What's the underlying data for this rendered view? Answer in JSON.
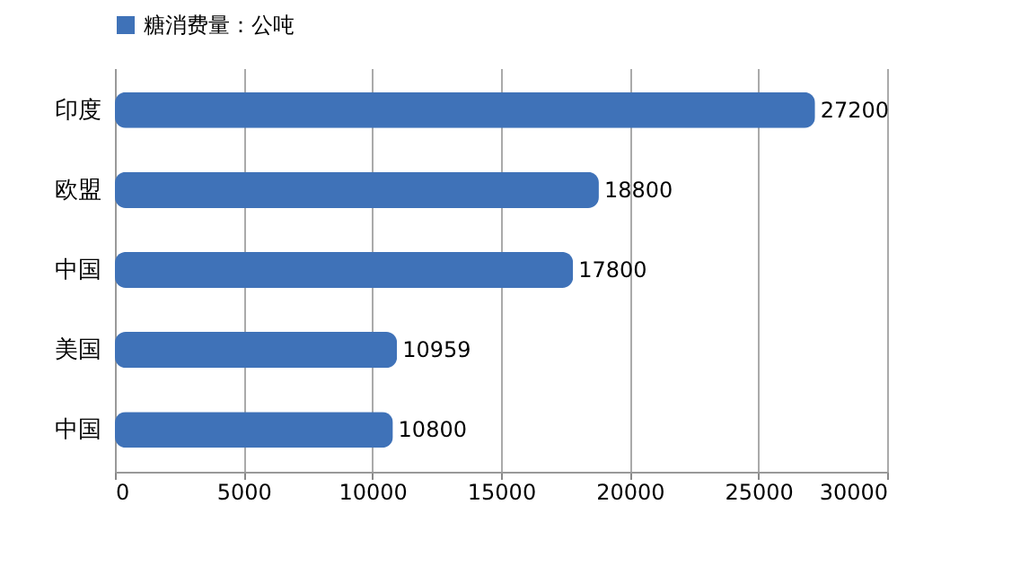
{
  "chart_data": {
    "type": "bar",
    "orientation": "horizontal",
    "categories": [
      "印度",
      "欧盟",
      "中国",
      "美国",
      "中国"
    ],
    "series": [
      {
        "name": "糖消费量：公吨",
        "color": "#3f72b8",
        "values": [
          27200,
          18800,
          17800,
          10959,
          10800
        ]
      }
    ],
    "xlim": [
      0,
      30000
    ],
    "xticks": [
      0,
      5000,
      10000,
      15000,
      20000,
      25000,
      30000
    ],
    "grid": "x",
    "legend": "top",
    "data_labels": true
  }
}
